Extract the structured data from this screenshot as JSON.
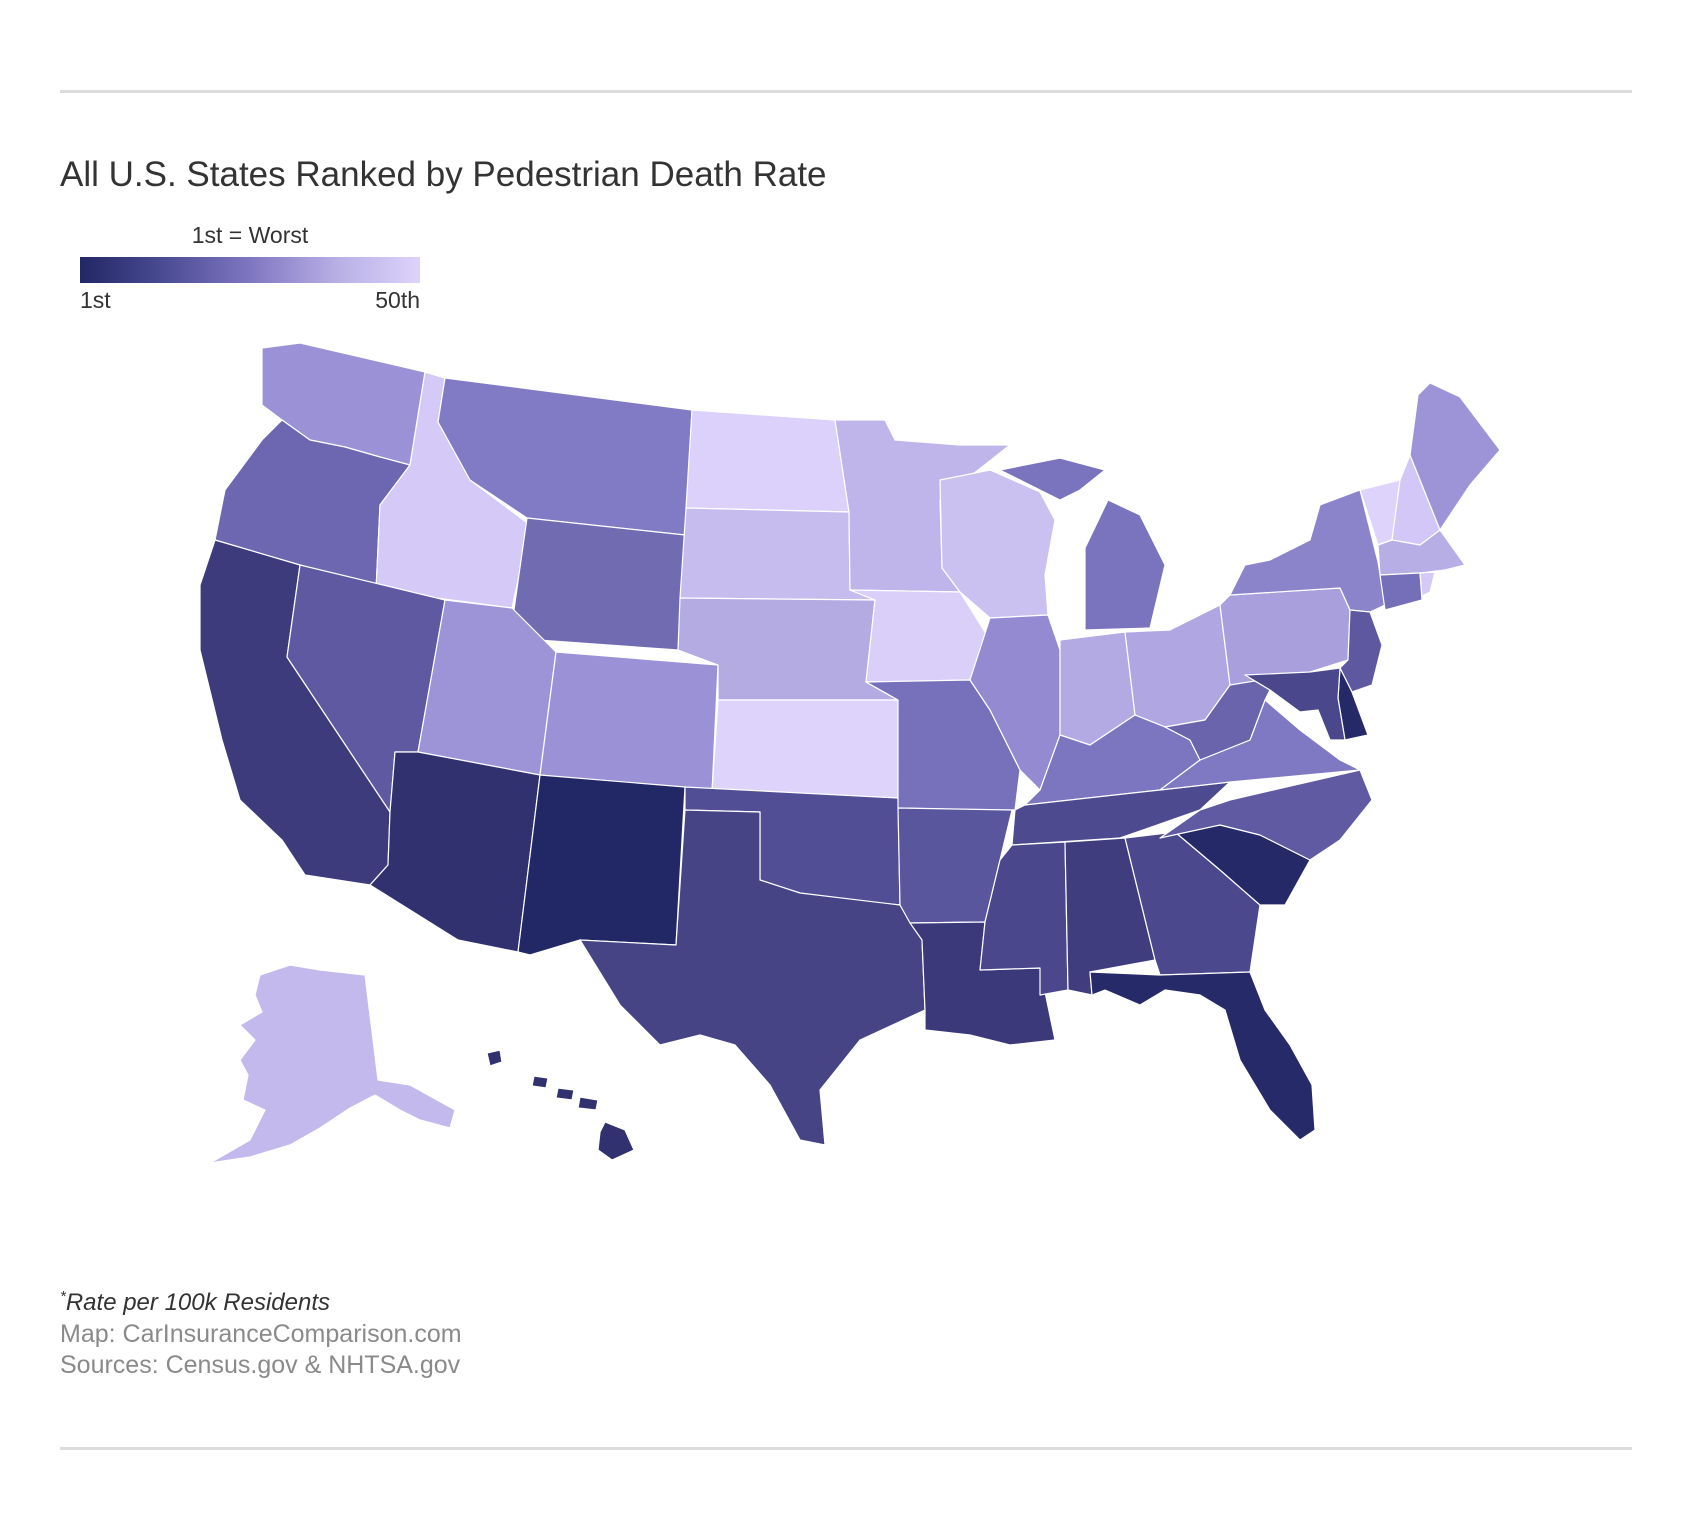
{
  "title": "All U.S. States Ranked by Pedestrian Death Rate",
  "legend": {
    "caption": "1st = Worst",
    "min_label": "1st",
    "max_label": "50th",
    "color_scale": [
      "#222766",
      "#4b4c93",
      "#7f76c1",
      "#b7aee5",
      "#ddd3fb"
    ]
  },
  "footnote": {
    "marker": "*",
    "text": "Rate per 100k Residents"
  },
  "credits": {
    "map": "Map: CarInsuranceComparison.com",
    "sources": "Sources: Census.gov & NHTSA.gov"
  },
  "colors": {
    "rule": "#dcdcdc",
    "text": "#333333",
    "muted_text": "#8a8a8a",
    "state_border": "#ffffff"
  },
  "states": [
    {
      "code": "WA",
      "color": "#9b91d6"
    },
    {
      "code": "OR",
      "color": "#6d66b0"
    },
    {
      "code": "CA",
      "color": "#3e3b7c"
    },
    {
      "code": "ID",
      "color": "#d4c9f7"
    },
    {
      "code": "NV",
      "color": "#5e59a1"
    },
    {
      "code": "MT",
      "color": "#817ac4"
    },
    {
      "code": "WY",
      "color": "#716bb2"
    },
    {
      "code": "UT",
      "color": "#9d94d8"
    },
    {
      "code": "AZ",
      "color": "#323170"
    },
    {
      "code": "CO",
      "color": "#9a91d6"
    },
    {
      "code": "NM",
      "color": "#222766"
    },
    {
      "code": "ND",
      "color": "#dbd1fa"
    },
    {
      "code": "SD",
      "color": "#c6bcee"
    },
    {
      "code": "NE",
      "color": "#b4abe3"
    },
    {
      "code": "KS",
      "color": "#ddd3fb"
    },
    {
      "code": "OK",
      "color": "#514e95"
    },
    {
      "code": "TX",
      "color": "#464485"
    },
    {
      "code": "MN",
      "color": "#bfb5ea"
    },
    {
      "code": "IA",
      "color": "#d9cff9"
    },
    {
      "code": "MO",
      "color": "#7770ba"
    },
    {
      "code": "AR",
      "color": "#5a569d"
    },
    {
      "code": "LA",
      "color": "#3b397a"
    },
    {
      "code": "WI",
      "color": "#cbc1f1"
    },
    {
      "code": "IL",
      "color": "#938ad1"
    },
    {
      "code": "MI",
      "color": "#7a73bd"
    },
    {
      "code": "IN",
      "color": "#b3aae4"
    },
    {
      "code": "OH",
      "color": "#b0a7e2"
    },
    {
      "code": "KY",
      "color": "#7c75bf"
    },
    {
      "code": "TN",
      "color": "#4d4a90"
    },
    {
      "code": "MS",
      "color": "#4a478c"
    },
    {
      "code": "AL",
      "color": "#3f3d7e"
    },
    {
      "code": "GA",
      "color": "#4b488d"
    },
    {
      "code": "FL",
      "color": "#272a69"
    },
    {
      "code": "SC",
      "color": "#262968"
    },
    {
      "code": "NC",
      "color": "#5f5aa2"
    },
    {
      "code": "VA",
      "color": "#7f78c2"
    },
    {
      "code": "WV",
      "color": "#6a64ad"
    },
    {
      "code": "PA",
      "color": "#a99fdd"
    },
    {
      "code": "NY",
      "color": "#8c84cb"
    },
    {
      "code": "VT",
      "color": "#ddd3fb"
    },
    {
      "code": "NH",
      "color": "#d2c7f6"
    },
    {
      "code": "ME",
      "color": "#9d94d8"
    },
    {
      "code": "MA",
      "color": "#b8aee6"
    },
    {
      "code": "CT",
      "color": "#756eb8"
    },
    {
      "code": "RI",
      "color": "#d4c9f7"
    },
    {
      "code": "NJ",
      "color": "#5d58a0"
    },
    {
      "code": "DE",
      "color": "#262968"
    },
    {
      "code": "MD",
      "color": "#4a478c"
    },
    {
      "code": "AK",
      "color": "#c3b9ed"
    },
    {
      "code": "HI",
      "color": "#323170"
    }
  ]
}
